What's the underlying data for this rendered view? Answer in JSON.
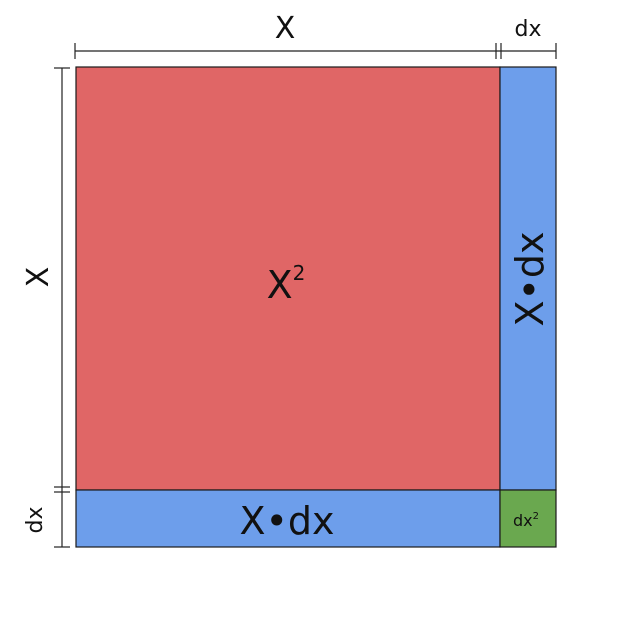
{
  "dimensions": {
    "top_x": "X",
    "top_dx": "dx",
    "left_x": "X",
    "left_dx": "dx"
  },
  "regions": {
    "square": {
      "base": "X",
      "exponent": "2",
      "color": "#e06666"
    },
    "right_strip": {
      "label": "X•dx",
      "color": "#6d9eeb"
    },
    "bottom_strip": {
      "label": "X•dx",
      "color": "#6d9eeb"
    },
    "corner": {
      "base": "dx",
      "exponent": "2",
      "color": "#6aa84f"
    }
  }
}
